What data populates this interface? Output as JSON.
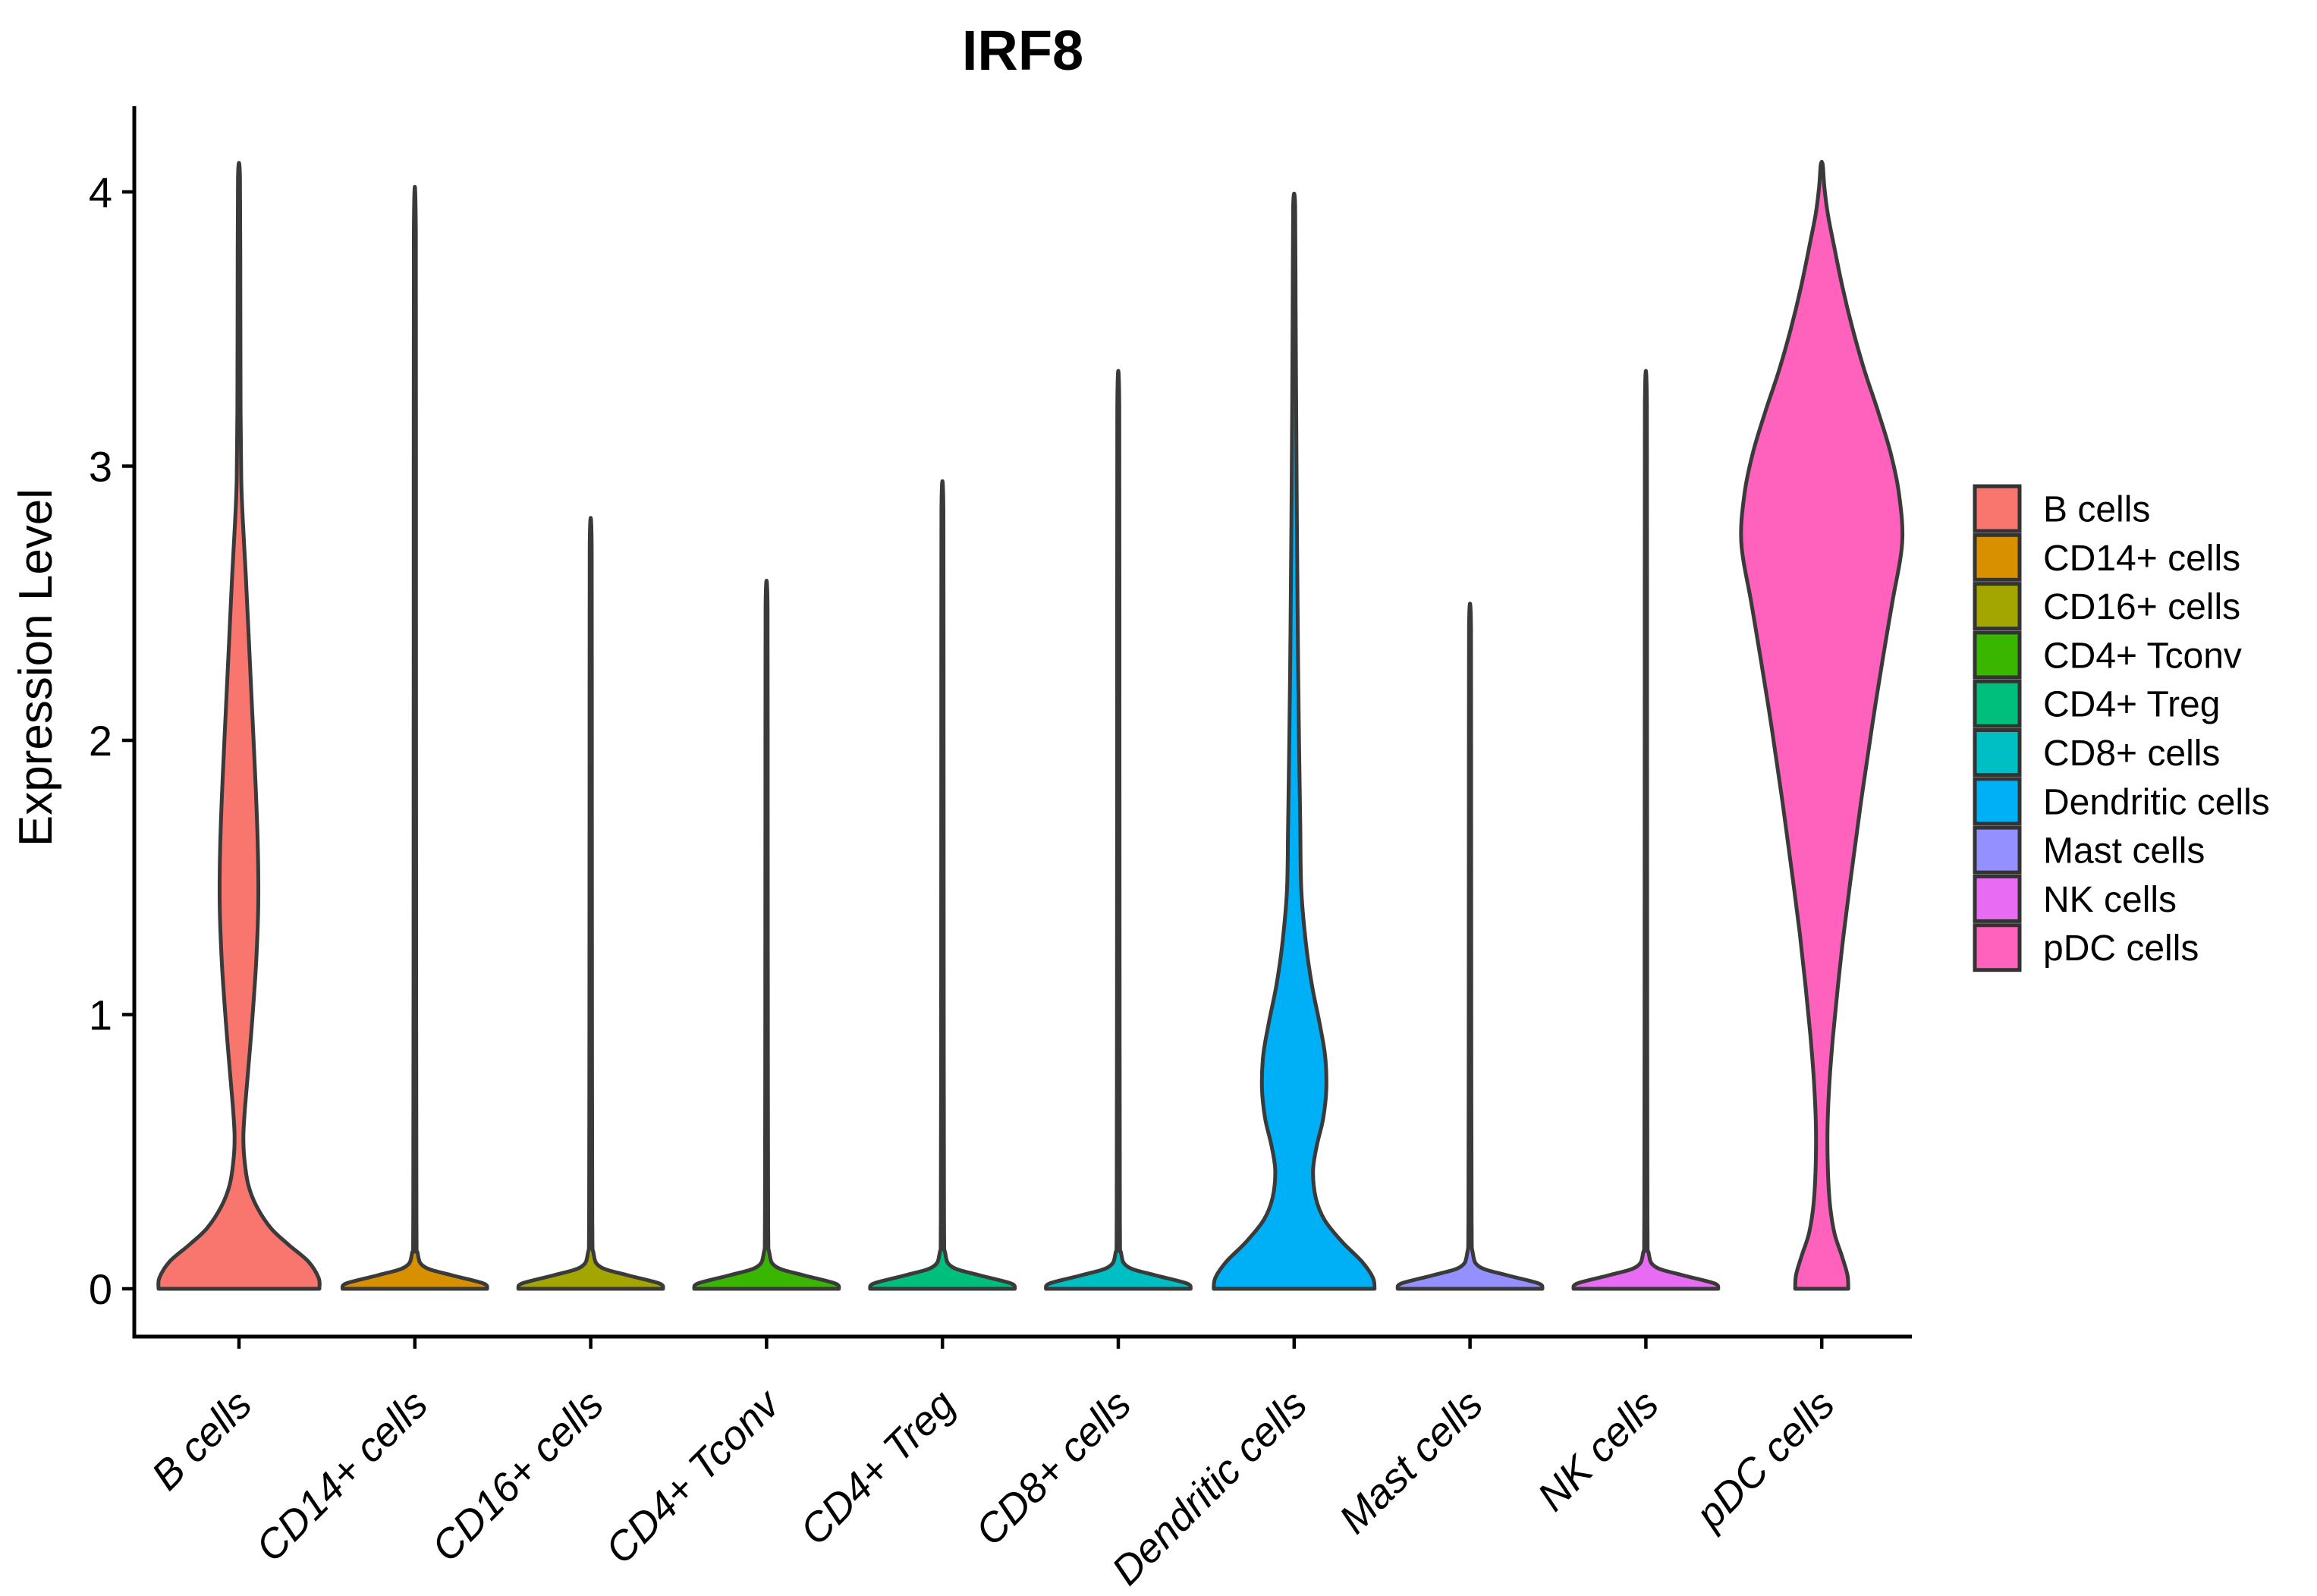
{
  "title": "IRF8",
  "y_axis": {
    "label": "Expression Level",
    "tick_labels": [
      "0",
      "1",
      "2",
      "3",
      "4"
    ]
  },
  "x_axis": {
    "categories": [
      "B cells",
      "CD14+ cells",
      "CD16+ cells",
      "CD4+ Tconv",
      "CD4+ Treg",
      "CD8+ cells",
      "Dendritic cells",
      "Mast cells",
      "NK cells",
      "pDC cells"
    ]
  },
  "legend": {
    "items": [
      {
        "label": "B cells",
        "color": "#F8766D"
      },
      {
        "label": "CD14+ cells",
        "color": "#D89000"
      },
      {
        "label": "CD16+ cells",
        "color": "#A3A500"
      },
      {
        "label": "CD4+ Tconv",
        "color": "#39B600"
      },
      {
        "label": "CD4+ Treg",
        "color": "#00BF7D"
      },
      {
        "label": "CD8+ cells",
        "color": "#00BFC4"
      },
      {
        "label": "Dendritic cells",
        "color": "#00B0F6"
      },
      {
        "label": "Mast cells",
        "color": "#9590FF"
      },
      {
        "label": "NK cells",
        "color": "#E76BF3"
      },
      {
        "label": "pDC cells",
        "color": "#FF62BC"
      }
    ]
  },
  "chart_data": {
    "type": "violin",
    "title": "IRF8",
    "xlabel": "",
    "ylabel": "Expression Level",
    "ylim": [
      -0.17,
      4.31
    ],
    "yticks": [
      0,
      1,
      2,
      3,
      4
    ],
    "grid": false,
    "legend_position": "right",
    "outline_color": "#3A3A3A",
    "categories": [
      "B cells",
      "CD14+ cells",
      "CD16+ cells",
      "CD4+ Tconv",
      "CD4+ Treg",
      "CD8+ cells",
      "Dendritic cells",
      "Mast cells",
      "NK cells",
      "pDC cells"
    ],
    "series": [
      {
        "name": "B cells",
        "color": "#F8766D",
        "max_expression": 4.05,
        "profile": [
          [
            0,
            1.0
          ],
          [
            0.04,
            0.99
          ],
          [
            0.1,
            0.86
          ],
          [
            0.16,
            0.62
          ],
          [
            0.22,
            0.4
          ],
          [
            0.3,
            0.22
          ],
          [
            0.38,
            0.115
          ],
          [
            0.48,
            0.065
          ],
          [
            0.56,
            0.055
          ],
          [
            0.66,
            0.075
          ],
          [
            0.8,
            0.115
          ],
          [
            1.0,
            0.17
          ],
          [
            1.2,
            0.215
          ],
          [
            1.4,
            0.24
          ],
          [
            1.6,
            0.235
          ],
          [
            1.85,
            0.205
          ],
          [
            2.1,
            0.165
          ],
          [
            2.35,
            0.125
          ],
          [
            2.6,
            0.085
          ],
          [
            2.8,
            0.048
          ],
          [
            2.95,
            0.028
          ],
          [
            3.2,
            0.02
          ],
          [
            3.6,
            0.017
          ],
          [
            4.05,
            0.012
          ]
        ]
      },
      {
        "name": "CD14+ cells",
        "color": "#D89000",
        "max_expression": 3.85,
        "profile": [
          [
            0,
            0.9
          ],
          [
            0.02,
            0.85
          ],
          [
            0.05,
            0.45
          ],
          [
            0.08,
            0.12
          ],
          [
            0.13,
            0.035
          ],
          [
            0.25,
            0.02
          ],
          [
            1.2,
            0.016
          ],
          [
            2.5,
            0.014
          ],
          [
            3.85,
            0.012
          ]
        ]
      },
      {
        "name": "CD16+ cells",
        "color": "#A3A500",
        "max_expression": 2.71,
        "profile": [
          [
            0,
            0.9
          ],
          [
            0.02,
            0.85
          ],
          [
            0.05,
            0.45
          ],
          [
            0.08,
            0.12
          ],
          [
            0.13,
            0.035
          ],
          [
            0.25,
            0.02
          ],
          [
            1.0,
            0.016
          ],
          [
            1.9,
            0.014
          ],
          [
            2.71,
            0.012
          ]
        ]
      },
      {
        "name": "CD4+ Tconv",
        "color": "#39B600",
        "max_expression": 2.49,
        "profile": [
          [
            0,
            0.9
          ],
          [
            0.02,
            0.85
          ],
          [
            0.05,
            0.45
          ],
          [
            0.08,
            0.12
          ],
          [
            0.13,
            0.035
          ],
          [
            0.25,
            0.02
          ],
          [
            0.95,
            0.016
          ],
          [
            1.75,
            0.014
          ],
          [
            2.49,
            0.012
          ]
        ]
      },
      {
        "name": "CD4+ Treg",
        "color": "#00BF7D",
        "max_expression": 2.84,
        "profile": [
          [
            0,
            0.9
          ],
          [
            0.02,
            0.85
          ],
          [
            0.05,
            0.45
          ],
          [
            0.08,
            0.12
          ],
          [
            0.13,
            0.035
          ],
          [
            0.25,
            0.02
          ],
          [
            1.05,
            0.016
          ],
          [
            2.0,
            0.014
          ],
          [
            2.84,
            0.012
          ]
        ]
      },
      {
        "name": "CD8+ cells",
        "color": "#00BFC4",
        "max_expression": 3.22,
        "profile": [
          [
            0,
            0.9
          ],
          [
            0.02,
            0.85
          ],
          [
            0.05,
            0.45
          ],
          [
            0.08,
            0.12
          ],
          [
            0.13,
            0.035
          ],
          [
            0.25,
            0.02
          ],
          [
            1.15,
            0.016
          ],
          [
            2.2,
            0.014
          ],
          [
            3.22,
            0.012
          ]
        ]
      },
      {
        "name": "Dendritic cells",
        "color": "#00B0F6",
        "max_expression": 3.95,
        "profile": [
          [
            0,
            1.0
          ],
          [
            0.04,
            0.98
          ],
          [
            0.1,
            0.84
          ],
          [
            0.17,
            0.6
          ],
          [
            0.25,
            0.38
          ],
          [
            0.33,
            0.27
          ],
          [
            0.43,
            0.235
          ],
          [
            0.52,
            0.28
          ],
          [
            0.62,
            0.36
          ],
          [
            0.73,
            0.4
          ],
          [
            0.85,
            0.385
          ],
          [
            0.97,
            0.315
          ],
          [
            1.1,
            0.225
          ],
          [
            1.25,
            0.15
          ],
          [
            1.45,
            0.09
          ],
          [
            1.7,
            0.075
          ],
          [
            2.0,
            0.06
          ],
          [
            2.4,
            0.045
          ],
          [
            2.8,
            0.034
          ],
          [
            3.2,
            0.025
          ],
          [
            3.6,
            0.018
          ],
          [
            3.95,
            0.012
          ]
        ]
      },
      {
        "name": "Mast cells",
        "color": "#9590FF",
        "max_expression": 2.41,
        "profile": [
          [
            0,
            0.9
          ],
          [
            0.02,
            0.85
          ],
          [
            0.05,
            0.45
          ],
          [
            0.08,
            0.12
          ],
          [
            0.13,
            0.035
          ],
          [
            0.25,
            0.02
          ],
          [
            0.9,
            0.016
          ],
          [
            1.7,
            0.014
          ],
          [
            2.41,
            0.012
          ]
        ]
      },
      {
        "name": "NK cells",
        "color": "#E76BF3",
        "max_expression": 3.22,
        "profile": [
          [
            0,
            0.9
          ],
          [
            0.02,
            0.85
          ],
          [
            0.05,
            0.45
          ],
          [
            0.08,
            0.12
          ],
          [
            0.13,
            0.035
          ],
          [
            0.25,
            0.02
          ],
          [
            1.15,
            0.016
          ],
          [
            2.2,
            0.014
          ],
          [
            3.22,
            0.012
          ]
        ]
      },
      {
        "name": "pDC cells",
        "color": "#FF62BC",
        "max_expression": 4.1,
        "profile": [
          [
            0,
            0.33
          ],
          [
            0.05,
            0.32
          ],
          [
            0.12,
            0.25
          ],
          [
            0.2,
            0.16
          ],
          [
            0.3,
            0.105
          ],
          [
            0.42,
            0.078
          ],
          [
            0.58,
            0.072
          ],
          [
            0.75,
            0.095
          ],
          [
            0.92,
            0.14
          ],
          [
            1.1,
            0.2
          ],
          [
            1.3,
            0.275
          ],
          [
            1.55,
            0.385
          ],
          [
            1.8,
            0.5
          ],
          [
            2.05,
            0.625
          ],
          [
            2.3,
            0.76
          ],
          [
            2.5,
            0.875
          ],
          [
            2.72,
            1.0
          ],
          [
            2.9,
            0.96
          ],
          [
            3.05,
            0.855
          ],
          [
            3.2,
            0.7
          ],
          [
            3.35,
            0.53
          ],
          [
            3.5,
            0.385
          ],
          [
            3.65,
            0.26
          ],
          [
            3.8,
            0.155
          ],
          [
            3.92,
            0.075
          ],
          [
            4.02,
            0.032
          ],
          [
            4.1,
            0.012
          ]
        ]
      }
    ]
  }
}
